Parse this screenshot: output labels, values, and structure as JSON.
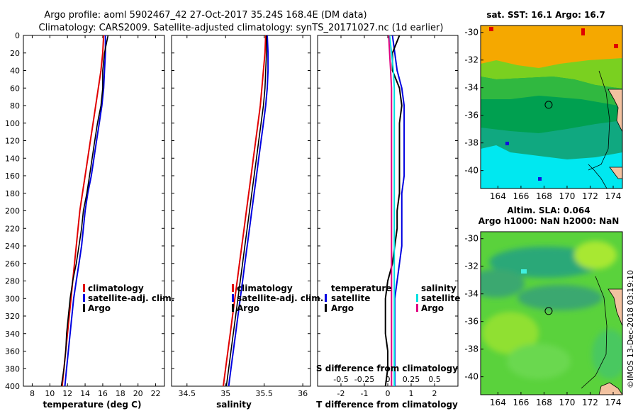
{
  "header": {
    "title_line1": "Argo profile: aoml 5902467_42 27-Oct-2017 35.24S 168.4E (DM data)",
    "title_line2": "Climatology: CARS2009. Satellite-adjusted climatology: synTS_20171027.nc (1d earlier)"
  },
  "footer": {
    "stamp": "©IMOS 13-Dec-2018 03:19:10"
  },
  "colors": {
    "climatology": "#e00000",
    "satellite": "#0000e0",
    "argo": "#000000",
    "satellite_salinity": "#00e0e0"
  },
  "chart_data": [
    {
      "type": "line",
      "id": "temperature",
      "xlabel": "temperature (deg C)",
      "ylabel": "",
      "xlim": [
        7,
        23
      ],
      "ylim": [
        400,
        0
      ],
      "xticks": [
        8,
        10,
        12,
        14,
        16,
        18,
        20,
        22
      ],
      "yticks": [
        0,
        20,
        40,
        60,
        80,
        100,
        120,
        140,
        160,
        180,
        200,
        220,
        240,
        260,
        280,
        300,
        320,
        340,
        360,
        380,
        400
      ],
      "legend": [
        "climatology",
        "satellite-adj. clim.",
        "Argo"
      ],
      "legend_position": "lower-right",
      "series": [
        {
          "name": "climatology",
          "depth": [
            0,
            20,
            40,
            60,
            80,
            100,
            120,
            140,
            160,
            180,
            200,
            220,
            240,
            260,
            280,
            300,
            320,
            340,
            360,
            380,
            400
          ],
          "values": [
            16.1,
            16.0,
            15.8,
            15.5,
            15.2,
            14.9,
            14.6,
            14.3,
            14.0,
            13.7,
            13.4,
            13.2,
            13.0,
            12.8,
            12.6,
            12.4,
            12.2,
            12.0,
            11.8,
            11.6,
            11.4
          ]
        },
        {
          "name": "satellite-adj. clim.",
          "depth": [
            0,
            20,
            40,
            60,
            80,
            100,
            120,
            140,
            160,
            180,
            200,
            220,
            240,
            260,
            280,
            300,
            320,
            340,
            360,
            380,
            400
          ],
          "values": [
            16.3,
            16.3,
            16.2,
            16.1,
            15.9,
            15.6,
            15.3,
            15.0,
            14.7,
            14.3,
            14.0,
            13.8,
            13.6,
            13.3,
            13.0,
            12.7,
            12.5,
            12.3,
            12.1,
            11.9,
            11.7
          ]
        },
        {
          "name": "Argo",
          "depth": [
            0,
            20,
            40,
            60,
            80,
            100,
            120,
            140,
            160,
            180,
            200,
            220,
            240,
            260,
            280,
            300,
            320,
            340,
            360,
            380,
            400
          ],
          "values": [
            16.6,
            16.2,
            16.0,
            16.0,
            15.8,
            15.4,
            15.1,
            14.8,
            14.5,
            14.2,
            13.8,
            13.6,
            13.3,
            13.0,
            12.6,
            12.3,
            12.1,
            11.9,
            11.8,
            11.6,
            11.3
          ]
        }
      ]
    },
    {
      "type": "line",
      "id": "salinity",
      "xlabel": "salinity",
      "ylabel": "",
      "xlim": [
        34.3,
        36.1
      ],
      "ylim": [
        400,
        0
      ],
      "xticks": [
        34.5,
        35,
        35.5,
        36
      ],
      "legend": [
        "climatology",
        "satellite-adj. clim.",
        "Argo"
      ],
      "legend_position": "lower-right",
      "series": [
        {
          "name": "climatology",
          "depth": [
            0,
            20,
            40,
            60,
            80,
            100,
            120,
            140,
            160,
            180,
            200,
            220,
            240,
            260,
            280,
            300,
            320,
            340,
            360,
            380,
            400
          ],
          "values": [
            35.52,
            35.51,
            35.49,
            35.47,
            35.45,
            35.42,
            35.39,
            35.36,
            35.33,
            35.3,
            35.27,
            35.24,
            35.21,
            35.18,
            35.15,
            35.12,
            35.09,
            35.06,
            35.03,
            35.0,
            34.97
          ]
        },
        {
          "name": "satellite-adj. clim.",
          "depth": [
            0,
            20,
            40,
            60,
            80,
            100,
            120,
            140,
            160,
            180,
            200,
            220,
            240,
            260,
            280,
            300,
            320,
            340,
            360,
            380,
            400
          ],
          "values": [
            35.54,
            35.55,
            35.55,
            35.54,
            35.52,
            35.49,
            35.46,
            35.43,
            35.4,
            35.37,
            35.34,
            35.31,
            35.28,
            35.25,
            35.22,
            35.19,
            35.16,
            35.13,
            35.1,
            35.07,
            35.04
          ]
        },
        {
          "name": "Argo",
          "depth": [
            0,
            20,
            40,
            60,
            80,
            100,
            120,
            140,
            160,
            180,
            200,
            220,
            240,
            260,
            280,
            300,
            320,
            340,
            360,
            380,
            400
          ],
          "values": [
            35.53,
            35.53,
            35.52,
            35.51,
            35.49,
            35.46,
            35.43,
            35.4,
            35.37,
            35.34,
            35.31,
            35.28,
            35.25,
            35.22,
            35.19,
            35.16,
            35.13,
            35.1,
            35.07,
            35.04,
            35.01
          ]
        }
      ]
    },
    {
      "type": "line",
      "id": "difference",
      "xlabel": "T difference from climatology",
      "top_xlabel": "S difference from climatology",
      "xlim": [
        -3,
        3
      ],
      "ylim": [
        400,
        0
      ],
      "xticks": [
        -2,
        -1,
        0,
        1,
        2
      ],
      "top_xtick_labels": [
        "-0.5",
        "-0.25",
        "0",
        "0.25",
        "0.5"
      ],
      "legend_left": {
        "title": "temperature",
        "entries": [
          "satellite",
          "Argo"
        ]
      },
      "legend_right": {
        "title": "salinity",
        "entries": [
          "satellite",
          "Argo"
        ]
      },
      "series": [
        {
          "name": "temperature satellite",
          "depth": [
            0,
            20,
            40,
            60,
            80,
            100,
            120,
            140,
            160,
            180,
            200,
            220,
            240,
            260,
            280,
            300,
            320,
            340,
            360,
            380,
            400
          ],
          "values": [
            0.2,
            0.3,
            0.4,
            0.6,
            0.7,
            0.7,
            0.7,
            0.7,
            0.7,
            0.6,
            0.6,
            0.6,
            0.6,
            0.5,
            0.4,
            0.3,
            0.3,
            0.3,
            0.3,
            0.3,
            0.3
          ]
        },
        {
          "name": "temperature Argo",
          "depth": [
            0,
            20,
            40,
            60,
            80,
            100,
            120,
            140,
            160,
            180,
            200,
            220,
            240,
            260,
            280,
            300,
            320,
            340,
            360,
            380,
            400
          ],
          "values": [
            0.5,
            0.2,
            0.2,
            0.5,
            0.6,
            0.5,
            0.5,
            0.5,
            0.5,
            0.5,
            0.4,
            0.4,
            0.3,
            0.2,
            0.0,
            -0.1,
            -0.1,
            -0.1,
            0.0,
            0.0,
            -0.1
          ]
        },
        {
          "name": "salinity satellite",
          "depth": [
            0,
            20,
            40,
            60,
            80,
            100,
            120,
            140,
            160,
            180,
            200,
            220,
            240,
            260,
            280,
            300,
            320,
            340,
            360,
            380,
            400
          ],
          "values": [
            0.02,
            0.04,
            0.06,
            0.07,
            0.07,
            0.07,
            0.07,
            0.07,
            0.07,
            0.07,
            0.07,
            0.07,
            0.07,
            0.07,
            0.07,
            0.07,
            0.07,
            0.07,
            0.07,
            0.07,
            0.07
          ]
        },
        {
          "name": "salinity Argo",
          "depth": [
            0,
            20,
            40,
            60,
            80,
            100,
            120,
            140,
            160,
            180,
            200,
            220,
            240,
            260,
            280,
            300,
            320,
            340,
            360,
            380,
            400
          ],
          "values": [
            0.01,
            0.02,
            0.03,
            0.04,
            0.04,
            0.04,
            0.04,
            0.04,
            0.04,
            0.04,
            0.04,
            0.04,
            0.04,
            0.04,
            0.04,
            0.04,
            0.04,
            0.04,
            0.04,
            0.04,
            0.04
          ]
        }
      ]
    },
    {
      "type": "heatmap",
      "id": "sst-map",
      "title": "sat. SST: 16.1 Argo: 16.7",
      "xlim": [
        162.5,
        174.8
      ],
      "ylim": [
        -41.3,
        -29.5
      ],
      "xticks": [
        164,
        166,
        168,
        170,
        172,
        174
      ],
      "yticks": [
        -30,
        -32,
        -34,
        -36,
        -38,
        -40
      ],
      "argo_position": {
        "lon": 168.4,
        "lat": -35.24
      }
    },
    {
      "type": "heatmap",
      "id": "sla-map",
      "title_line1": "Altim. SLA: 0.064",
      "title_line2": "Argo h1000: NaN h2000: NaN",
      "xlim": [
        162.5,
        174.8
      ],
      "ylim": [
        -41.3,
        -29.5
      ],
      "xticks": [
        164,
        166,
        168,
        170,
        172,
        174
      ],
      "yticks": [
        -30,
        -32,
        -34,
        -36,
        -38,
        -40
      ],
      "argo_position": {
        "lon": 168.4,
        "lat": -35.24
      }
    }
  ]
}
